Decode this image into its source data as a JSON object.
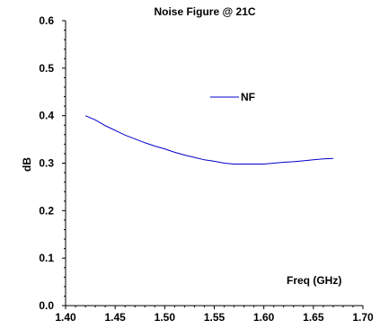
{
  "chart_data": {
    "type": "line",
    "title": "Noise Figure @ 21C",
    "xlabel": "Freq (GHz)",
    "ylabel": "dB",
    "xlim": [
      1.4,
      1.7
    ],
    "ylim": [
      0.0,
      0.6
    ],
    "x_ticks": [
      "1.40",
      "1.45",
      "1.50",
      "1.55",
      "1.60",
      "1.65",
      "1.70"
    ],
    "y_ticks": [
      "0.0",
      "0.1",
      "0.2",
      "0.3",
      "0.4",
      "0.5",
      "0.6"
    ],
    "grid": false,
    "legend_position": "upper-center",
    "series": [
      {
        "name": "NF",
        "color": "#0000CC",
        "x": [
          1.42,
          1.43,
          1.44,
          1.45,
          1.46,
          1.47,
          1.48,
          1.49,
          1.5,
          1.51,
          1.52,
          1.53,
          1.54,
          1.55,
          1.56,
          1.57,
          1.58,
          1.59,
          1.6,
          1.61,
          1.62,
          1.63,
          1.64,
          1.65,
          1.66,
          1.67
        ],
        "y": [
          0.4,
          0.391,
          0.379,
          0.369,
          0.359,
          0.351,
          0.343,
          0.336,
          0.33,
          0.323,
          0.317,
          0.312,
          0.307,
          0.304,
          0.3,
          0.298,
          0.298,
          0.298,
          0.298,
          0.3,
          0.302,
          0.303,
          0.305,
          0.307,
          0.309,
          0.31
        ]
      }
    ]
  }
}
